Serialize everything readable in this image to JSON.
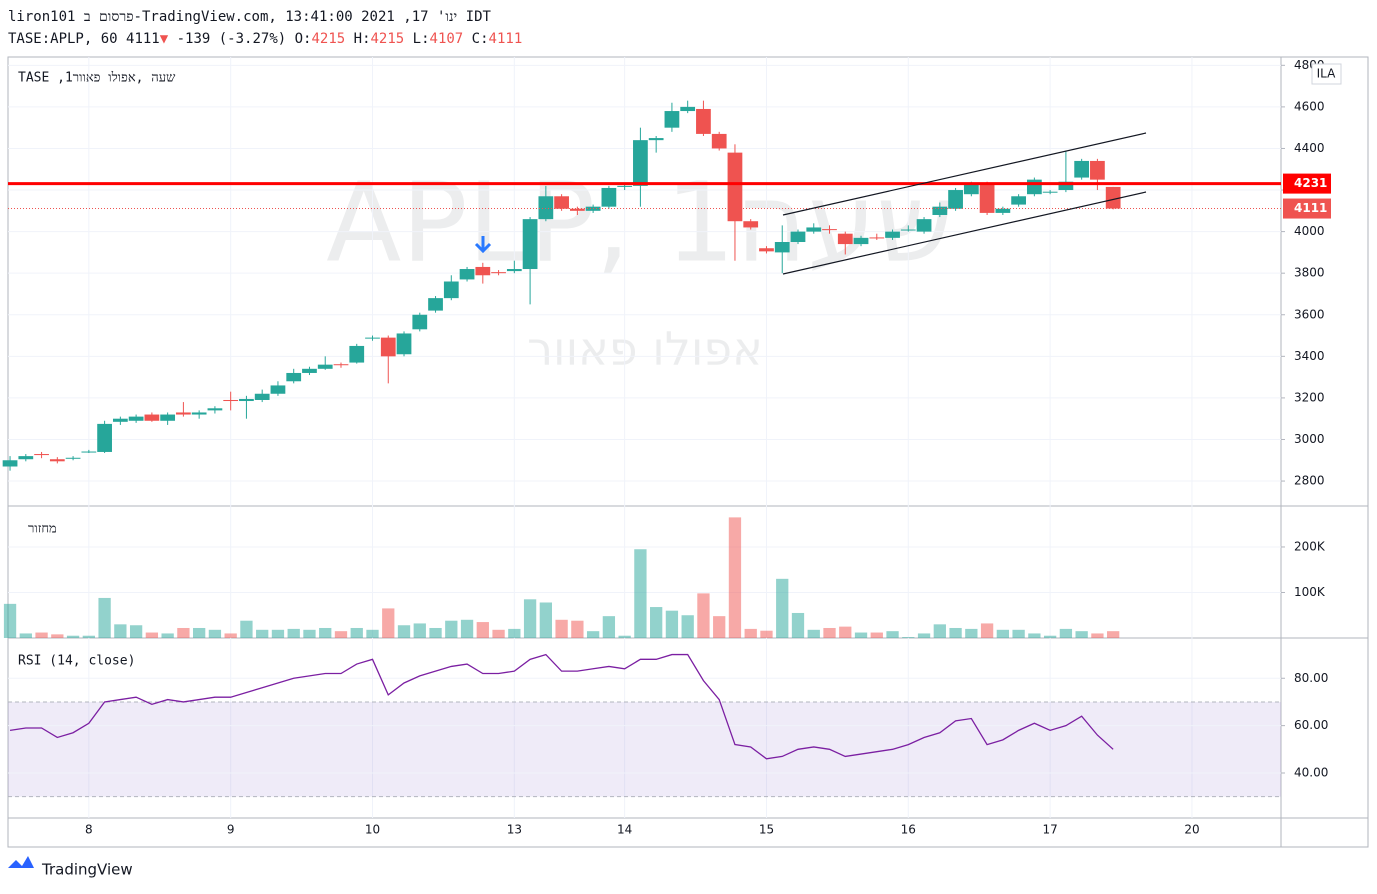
{
  "header": {
    "line1": "liron101 פרסום ב-TradingView.com, ינו' 17, 2021 13:41:00 IDT",
    "symbol": "TASE:APLP, 60",
    "arrow": "▼",
    "change": "-139 (-3.27%)",
    "o_label": "O:",
    "h_label": "H:",
    "l_label": "L:",
    "c_label": "C:"
  },
  "pane_legend": "TASE ,1שעה ,אפולו פאוור",
  "watermark": "APLP, 1שעה",
  "watermark_sub": "אפולו פאוור",
  "currency": "ILA",
  "logo": "TradingView",
  "chart_data": {
    "type": "candlestick",
    "open": [
      2870,
      2905,
      2930,
      2905,
      2910,
      2940,
      2940,
      3085,
      3090,
      3120,
      3090,
      3130,
      3120,
      3140,
      3190,
      3185,
      3190,
      3220,
      3280,
      3320,
      3340,
      3362,
      3370,
      3488,
      3490,
      3410,
      3530,
      3620,
      3680,
      3770,
      3830,
      3805,
      3810,
      3820,
      4060,
      4170,
      4110,
      4100,
      4120,
      4215,
      4220,
      4440,
      4500,
      4580,
      4590,
      4470,
      4380,
      4050,
      3920,
      3900,
      3950,
      4000,
      4012,
      3990,
      3940,
      3972,
      3970,
      4008,
      4000,
      4080,
      4110,
      4180,
      4230,
      4090,
      4130,
      4180,
      4190,
      4200,
      4260,
      4340,
      4215
    ],
    "high": [
      2920,
      2930,
      2940,
      2915,
      2920,
      2950,
      3090,
      3110,
      3120,
      3130,
      3130,
      3180,
      3140,
      3160,
      3230,
      3210,
      3240,
      3280,
      3340,
      3350,
      3400,
      3370,
      3460,
      3500,
      3500,
      3520,
      3610,
      3690,
      3790,
      3830,
      3850,
      3815,
      3860,
      4070,
      4220,
      4180,
      4120,
      4130,
      4220,
      4230,
      4500,
      4460,
      4620,
      4630,
      4630,
      4480,
      4420,
      4060,
      3930,
      4030,
      4010,
      4040,
      4030,
      4000,
      3980,
      3990,
      4010,
      4030,
      4070,
      4140,
      4210,
      4240,
      4240,
      4120,
      4180,
      4260,
      4200,
      4390,
      4350,
      4350,
      4215
    ],
    "low": [
      2850,
      2895,
      2910,
      2885,
      2900,
      2935,
      2935,
      3070,
      3080,
      3085,
      3070,
      3110,
      3100,
      3125,
      3140,
      3100,
      3180,
      3210,
      3270,
      3310,
      3335,
      3345,
      3365,
      3475,
      3270,
      3400,
      3520,
      3610,
      3670,
      3760,
      3750,
      3790,
      3800,
      3650,
      4050,
      4100,
      4080,
      4090,
      4110,
      4200,
      4120,
      4380,
      4480,
      4570,
      4460,
      4390,
      3860,
      4010,
      3895,
      3800,
      3940,
      3990,
      3990,
      3890,
      3930,
      3960,
      3960,
      4000,
      3990,
      4070,
      4100,
      4170,
      4080,
      4080,
      4120,
      4170,
      4180,
      4190,
      4250,
      4200,
      4107
    ],
    "close": [
      2900,
      2920,
      2925,
      2895,
      2912,
      2942,
      3075,
      3100,
      3110,
      3090,
      3120,
      3120,
      3130,
      3150,
      3185,
      3195,
      3220,
      3260,
      3320,
      3340,
      3360,
      3360,
      3450,
      3490,
      3400,
      3510,
      3600,
      3680,
      3760,
      3820,
      3790,
      3800,
      3820,
      4060,
      4170,
      4110,
      4100,
      4120,
      4210,
      4220,
      4440,
      4450,
      4580,
      4600,
      4470,
      4400,
      4050,
      4020,
      3905,
      3950,
      4000,
      4020,
      4010,
      3940,
      3970,
      3970,
      4000,
      4010,
      4060,
      4120,
      4200,
      4230,
      4090,
      4110,
      4170,
      4250,
      4192,
      4240,
      4340,
      4250,
      4111
    ],
    "up_color": "#26a69a",
    "down_color": "#ef5350",
    "xlim": [
      -0.13,
      80.65
    ],
    "xticks": [
      {
        "value": 5,
        "label": "8"
      },
      {
        "value": 14,
        "label": "9"
      },
      {
        "value": 23,
        "label": "10"
      },
      {
        "value": 32,
        "label": "13"
      },
      {
        "value": 39,
        "label": "14"
      },
      {
        "value": 48,
        "label": "15"
      },
      {
        "value": 57,
        "label": "16"
      },
      {
        "value": 66,
        "label": "17"
      },
      {
        "value": 75,
        "label": "20"
      }
    ],
    "ylim": [
      2680,
      4840
    ],
    "yticks": [
      2800,
      3000,
      3200,
      3400,
      3600,
      3800,
      4000,
      4200,
      4400,
      4600,
      4800
    ],
    "horizontal_line": 4231,
    "grid": true,
    "volume": {
      "name": "מחזור",
      "values": [
        75000,
        10000,
        12000,
        8000,
        5000,
        5000,
        88000,
        30000,
        28000,
        12000,
        10000,
        22000,
        22000,
        18000,
        10000,
        38000,
        18000,
        18000,
        20000,
        18000,
        22000,
        15000,
        22000,
        18000,
        65000,
        28000,
        32000,
        22000,
        38000,
        40000,
        35000,
        18000,
        20000,
        85000,
        78000,
        40000,
        38000,
        15000,
        48000,
        5000,
        195000,
        68000,
        60000,
        50000,
        98000,
        48000,
        265000,
        20000,
        16000,
        130000,
        55000,
        18000,
        22000,
        25000,
        12000,
        12000,
        15000,
        2000,
        10000,
        30000,
        22000,
        20000,
        32000,
        18000,
        18000,
        10000,
        5000,
        20000,
        15000,
        10000,
        15000
      ],
      "ylim": [
        0,
        290000
      ],
      "yticks": [
        {
          "value": 100000,
          "label": "100K"
        },
        {
          "value": 200000,
          "label": "200K"
        }
      ]
    },
    "rsi": {
      "name": "RSI (14, close)",
      "color": "#7b1fa2",
      "values": [
        58,
        59,
        59,
        55,
        57,
        61,
        70,
        71,
        72,
        69,
        71,
        70,
        71,
        72,
        72,
        74,
        76,
        78,
        80,
        81,
        82,
        82,
        86,
        88,
        73,
        78,
        81,
        83,
        85,
        86,
        82,
        82,
        83,
        88,
        90,
        83,
        83,
        84,
        85,
        84,
        88,
        88,
        90,
        90,
        79,
        71,
        52,
        51,
        46,
        47,
        50,
        51,
        50,
        47,
        48,
        49,
        50,
        52,
        55,
        57,
        62,
        63,
        52,
        54,
        58,
        61,
        58,
        60,
        64,
        56,
        50
      ],
      "ylim": [
        21,
        97
      ],
      "yticks": [
        {
          "value": 40,
          "label": "40.00"
        },
        {
          "value": 60,
          "label": "60.00"
        },
        {
          "value": 80,
          "label": "80.00"
        }
      ],
      "bands": [
        30,
        70
      ]
    }
  }
}
